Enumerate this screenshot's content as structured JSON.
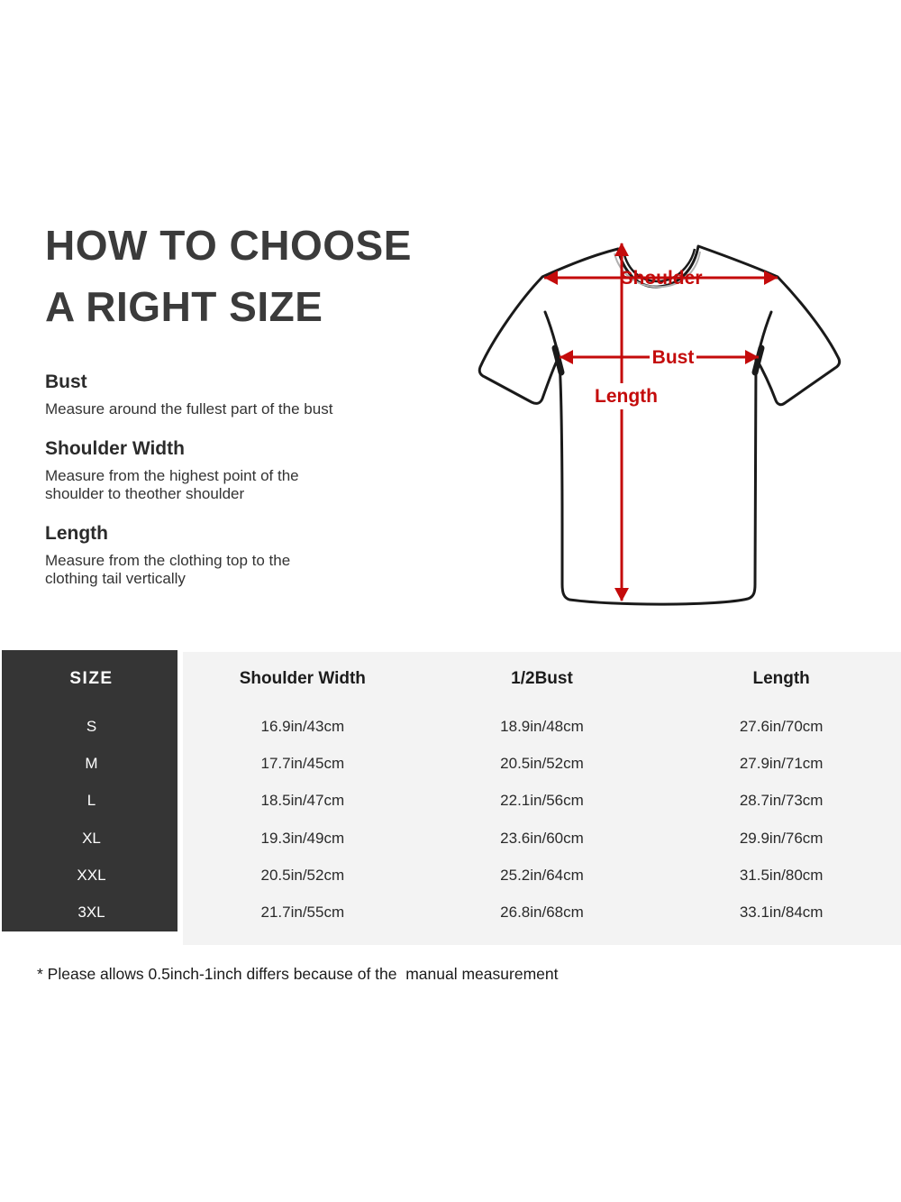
{
  "header": {
    "title_line1": "HOW TO CHOOSE",
    "title_line2": "A RIGHT SIZE"
  },
  "instructions": [
    {
      "heading": "Bust",
      "text": "Measure around the fullest part of the bust"
    },
    {
      "heading": "Shoulder Width",
      "text": "Measure from the highest point of the\nshoulder to theother shoulder"
    },
    {
      "heading": "Length",
      "text": "Measure from the clothing top to the\nclothing tail vertically"
    }
  ],
  "diagram": {
    "labels": {
      "shoulder": "Shoulder",
      "bust": "Bust",
      "length": "Length"
    }
  },
  "size_chart": {
    "header": {
      "size": "SIZE",
      "shoulder": "Shoulder Width",
      "bust": "1/2Bust",
      "length": "Length"
    },
    "rows": [
      {
        "size": "S",
        "shoulder": "16.9in/43cm",
        "bust": "18.9in/48cm",
        "length": "27.6in/70cm"
      },
      {
        "size": "M",
        "shoulder": "17.7in/45cm",
        "bust": "20.5in/52cm",
        "length": "27.9in/71cm"
      },
      {
        "size": "L",
        "shoulder": "18.5in/47cm",
        "bust": "22.1in/56cm",
        "length": "28.7in/73cm"
      },
      {
        "size": "XL",
        "shoulder": "19.3in/49cm",
        "bust": "23.6in/60cm",
        "length": "29.9in/76cm"
      },
      {
        "size": "XXL",
        "shoulder": "20.5in/52cm",
        "bust": "25.2in/64cm",
        "length": "31.5in/80cm"
      },
      {
        "size": "3XL",
        "shoulder": "21.7in/55cm",
        "bust": "26.8in/68cm",
        "length": "33.1in/84cm"
      }
    ]
  },
  "footnote": {
    "text": "* Please allows 0.5inch-1inch differs because of the  manual measurement"
  },
  "colors": {
    "accent_red": "#c40b0b",
    "title_gray": "#3b3b3b",
    "table_header_bg": "#353535",
    "table_body_bg": "#f3f3f3",
    "outline_black": "#1a1a1a"
  }
}
